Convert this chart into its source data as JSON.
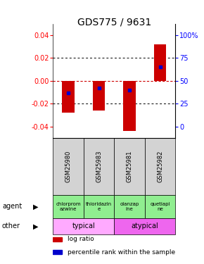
{
  "title": "GDS775 / 9631",
  "samples": [
    "GSM25980",
    "GSM25983",
    "GSM25981",
    "GSM25982"
  ],
  "log_ratios": [
    -0.028,
    -0.026,
    -0.044,
    0.032
  ],
  "percentile_ranks": [
    0.37,
    0.42,
    0.4,
    0.65
  ],
  "agents_text": [
    "chlorprom\nazwine",
    "thioridazin\ne",
    "olanzap\nine",
    "quetiapi\nne"
  ],
  "agent_color": "#90ee90",
  "other_groups": [
    [
      "typical",
      2
    ],
    [
      "atypical",
      2
    ]
  ],
  "other_color_1": "#ffaaff",
  "other_color_2": "#ee66ee",
  "ylim": [
    -0.05,
    0.05
  ],
  "yticks_left": [
    -0.04,
    -0.02,
    0.0,
    0.02,
    0.04
  ],
  "yticks_right": [
    0,
    25,
    50,
    75,
    100
  ],
  "bar_color": "#cc0000",
  "dot_color": "#0000cc",
  "bg_color": "#ffffff",
  "zero_line_color": "#cc0000",
  "title_fontsize": 10,
  "tick_fontsize": 7,
  "label_fontsize": 7,
  "sample_fontsize": 6,
  "agent_fontsize": 5,
  "other_fontsize": 7,
  "legend_fontsize": 6.5
}
